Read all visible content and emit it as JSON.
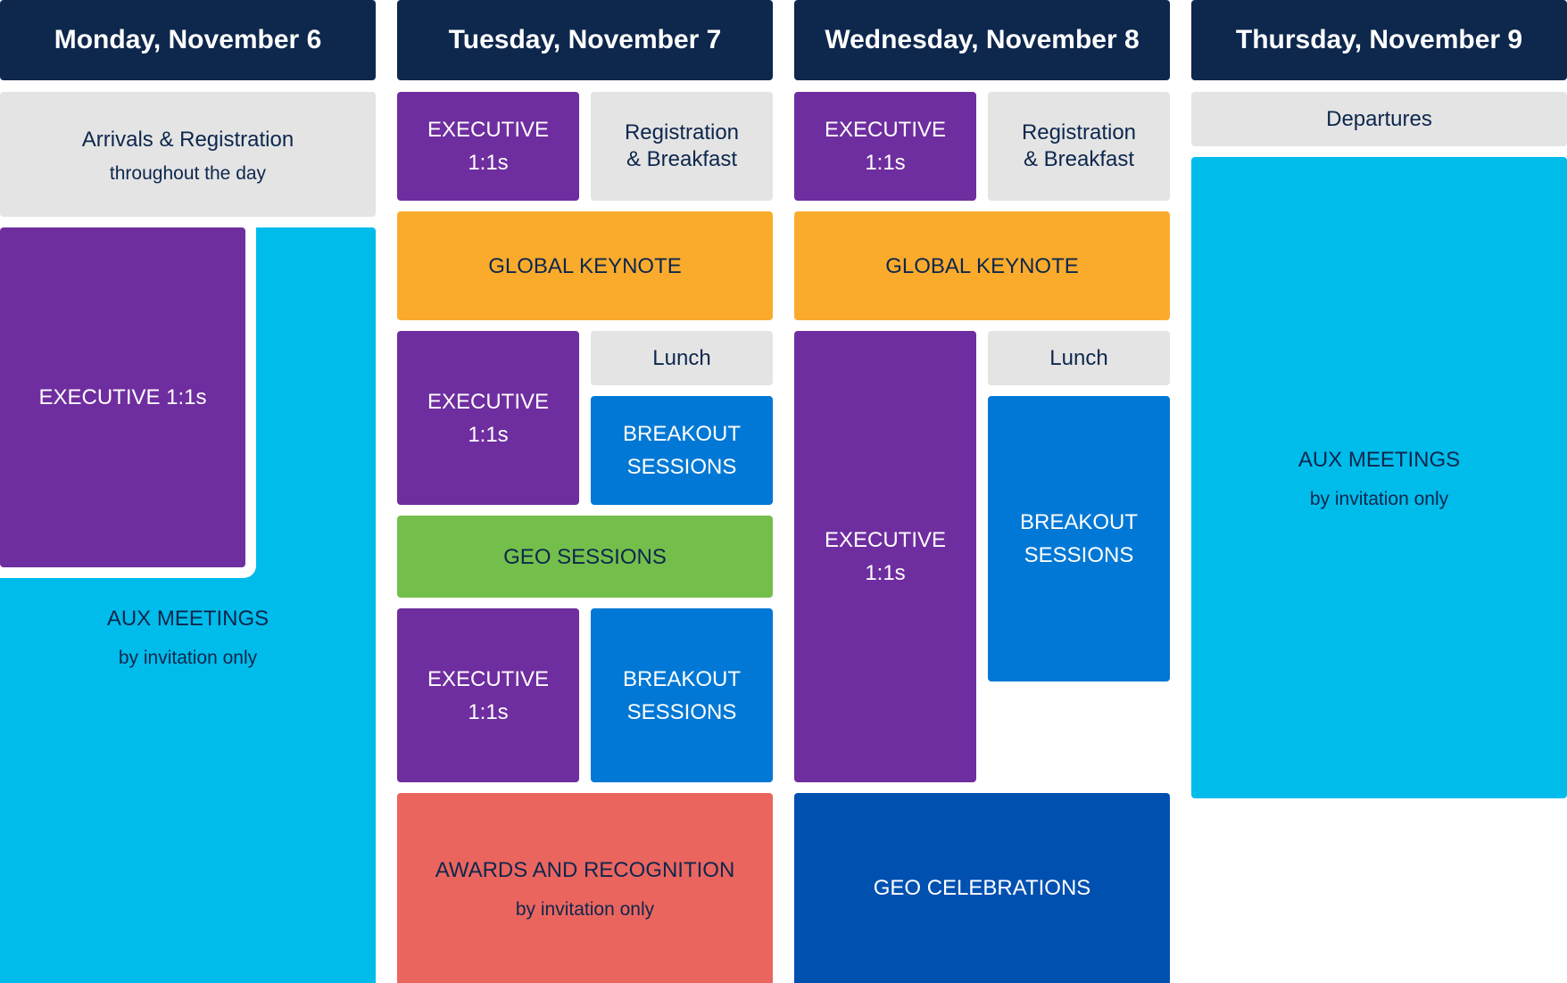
{
  "days": {
    "monday": "Monday, November 6",
    "tuesday": "Tuesday, November 7",
    "wednesday": "Wednesday, November 8",
    "thursday": "Thursday, November 9"
  },
  "monday": {
    "arrivals": {
      "title": "Arrivals & Registration",
      "subtitle": "throughout the day"
    },
    "executive": {
      "title": "EXECUTIVE 1:1s"
    },
    "aux": {
      "title": "AUX MEETINGS",
      "subtitle": "by invitation only"
    }
  },
  "tuesday": {
    "exec_morning": {
      "line1": "EXECUTIVE",
      "line2": "1:1s"
    },
    "registration": {
      "line1": "Registration",
      "line2": "& Breakfast"
    },
    "keynote": {
      "title": "GLOBAL KEYNOTE"
    },
    "exec_midday": {
      "line1": "EXECUTIVE",
      "line2": "1:1s"
    },
    "lunch": {
      "title": "Lunch"
    },
    "breakout_midday": {
      "line1": "BREAKOUT",
      "line2": "SESSIONS"
    },
    "geo_sessions": {
      "title": "GEO SESSIONS"
    },
    "exec_afternoon": {
      "line1": "EXECUTIVE",
      "line2": "1:1s"
    },
    "breakout_afternoon": {
      "line1": "BREAKOUT",
      "line2": "SESSIONS"
    },
    "awards": {
      "title": "AWARDS AND RECOGNITION",
      "subtitle": "by invitation only"
    }
  },
  "wednesday": {
    "exec_morning": {
      "line1": "EXECUTIVE",
      "line2": "1:1s"
    },
    "registration": {
      "line1": "Registration",
      "line2": "& Breakfast"
    },
    "keynote": {
      "title": "GLOBAL KEYNOTE"
    },
    "exec_long": {
      "line1": "EXECUTIVE",
      "line2": "1:1s"
    },
    "lunch": {
      "title": "Lunch"
    },
    "breakout": {
      "line1": "BREAKOUT",
      "line2": "SESSIONS"
    },
    "celebrations": {
      "title": "GEO CELEBRATIONS"
    }
  },
  "thursday": {
    "departures": {
      "title": "Departures"
    },
    "aux": {
      "title": "AUX MEETINGS",
      "subtitle": "by invitation only"
    }
  },
  "colors": {
    "header_navy": "#0d274d",
    "neutral_gray": "#e4e4e4",
    "executive_purple": "#6f2e9f",
    "keynote_orange": "#fbab2c",
    "breakout_blue": "#0178d5",
    "aux_cyan": "#00bceb",
    "geo_green": "#74bf4b",
    "awards_red": "#eb655f",
    "celebrations_blue": "#0050b0"
  }
}
